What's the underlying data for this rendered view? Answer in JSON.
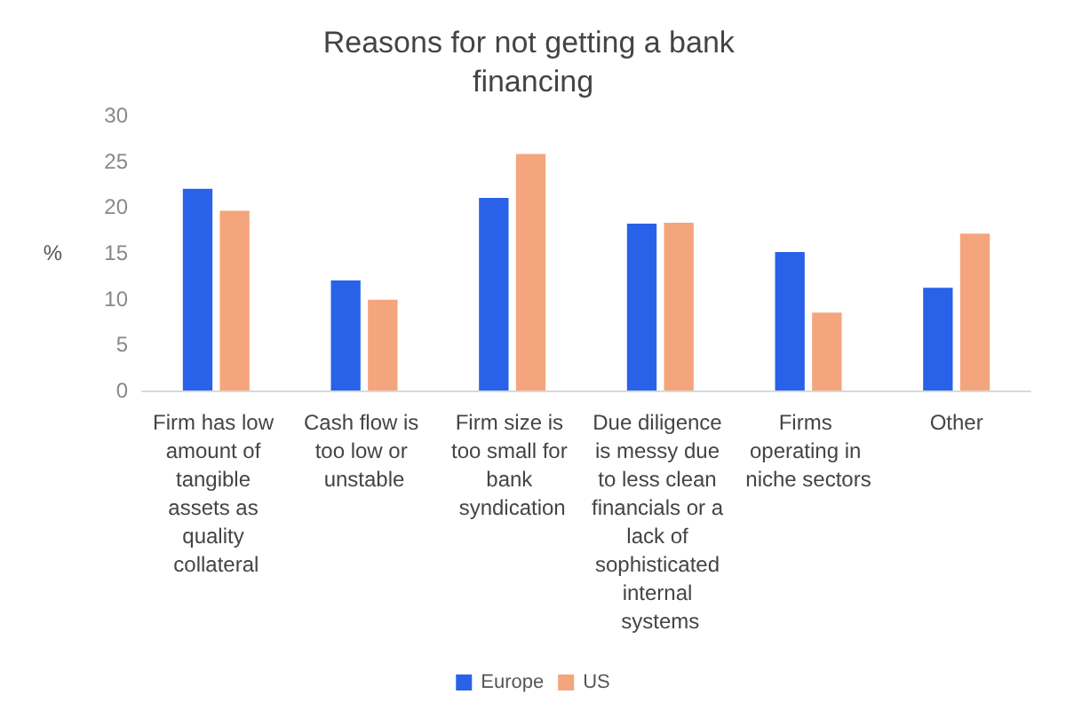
{
  "chart_data": {
    "type": "bar",
    "title": "Reasons for not getting a bank financing",
    "ylabel": "%",
    "categories": [
      "Firm has low amount of tangible assets as quality collateral",
      "Cash flow is too low or unstable",
      "Firm size is too small for bank syndication",
      "Due diligence is messy due to less clean financials or a lack of sophisticated internal systems",
      "Firms operating in niche sectors",
      "Other"
    ],
    "series": [
      {
        "name": "Europe",
        "color": "#2962e8",
        "values": [
          22.0,
          12.0,
          21.0,
          18.2,
          15.1,
          11.2
        ]
      },
      {
        "name": "US",
        "color": "#f4a57c",
        "values": [
          19.6,
          9.9,
          25.8,
          18.3,
          8.5,
          17.1
        ]
      }
    ],
    "ylim": [
      0,
      30
    ],
    "yticks": [
      0,
      5,
      10,
      15,
      20,
      25,
      30
    ],
    "grid": false,
    "legend": "bottom"
  }
}
